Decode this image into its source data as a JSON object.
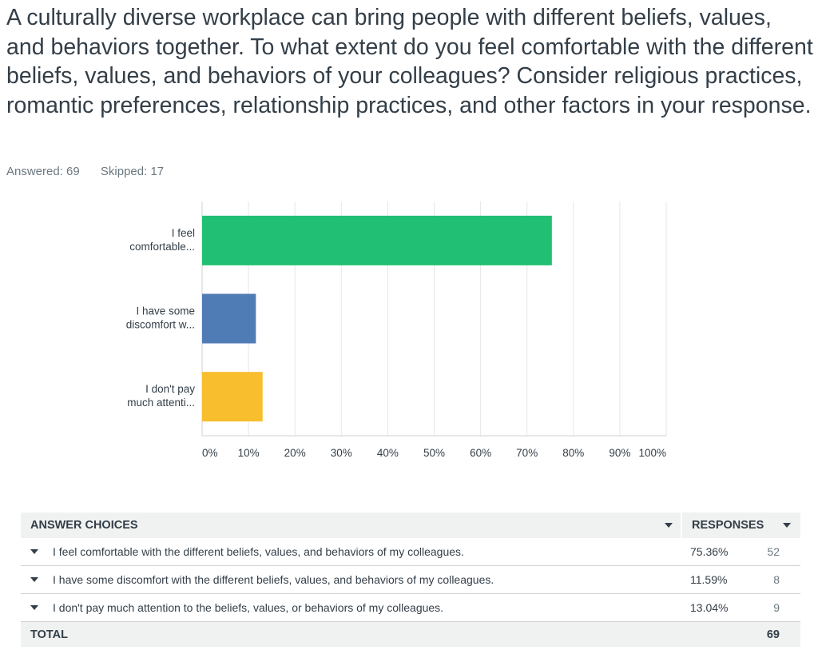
{
  "question": "A culturally diverse workplace can bring people with different beliefs, values, and behaviors together. To what extent do you feel comfortable with the different beliefs, values, and behaviors of your colleagues? Consider religious practices, romantic preferences, relationship practices, and other factors in your response.",
  "stats": {
    "answered": "Answered: 69",
    "skipped": "Skipped: 17"
  },
  "chart_data": {
    "type": "bar",
    "orientation": "horizontal",
    "categories": [
      [
        "I feel",
        "comfortable..."
      ],
      [
        "I have some",
        "discomfort w..."
      ],
      [
        "I don't pay",
        "much attenti..."
      ]
    ],
    "values": [
      75.36,
      11.59,
      13.04
    ],
    "colors": [
      "#21bf73",
      "#507cb6",
      "#f9be2e"
    ],
    "xticks": [
      "0%",
      "10%",
      "20%",
      "30%",
      "40%",
      "50%",
      "60%",
      "70%",
      "80%",
      "90%",
      "100%"
    ],
    "xlim": [
      0,
      100
    ],
    "grid": true
  },
  "table": {
    "header_choices": "ANSWER CHOICES",
    "header_responses": "RESPONSES",
    "rows": [
      {
        "choice": "I feel comfortable with the different beliefs, values, and behaviors of my colleagues.",
        "percent": "75.36%",
        "count": "52"
      },
      {
        "choice": "I have some discomfort with the different beliefs, values, and behaviors of my colleagues.",
        "percent": "11.59%",
        "count": "8"
      },
      {
        "choice": "I don't pay much attention to the beliefs, values, or behaviors of my colleagues.",
        "percent": "13.04%",
        "count": "9"
      }
    ],
    "total_label": "TOTAL",
    "total_value": "69"
  }
}
